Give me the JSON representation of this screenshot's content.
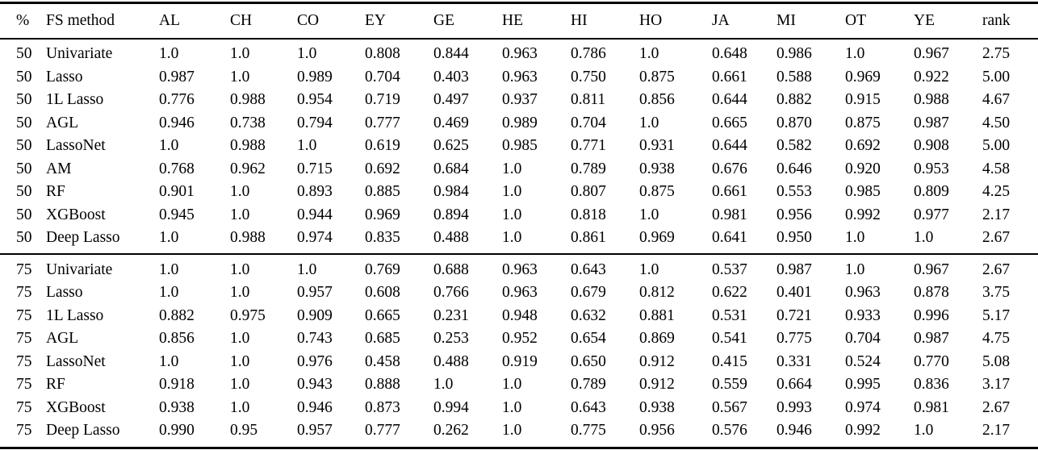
{
  "colors": {
    "text": "#000000",
    "background": "#ffffff",
    "rule": "#000000"
  },
  "table": {
    "columns": [
      "%",
      "FS method",
      "AL",
      "CH",
      "CO",
      "EY",
      "GE",
      "HE",
      "HI",
      "HO",
      "JA",
      "MI",
      "OT",
      "YE",
      "rank"
    ],
    "sections": [
      {
        "pct": "50",
        "rows": [
          {
            "pct": "50",
            "method": "Univariate",
            "values": [
              "1.0",
              "1.0",
              "1.0",
              "0.808",
              "0.844",
              "0.963",
              "0.786",
              "1.0",
              "0.648",
              "0.986",
              "1.0",
              "0.967"
            ],
            "bold": [
              1,
              1,
              1,
              0,
              0,
              0,
              0,
              1,
              0,
              1,
              1,
              0
            ],
            "rank": "2.75"
          },
          {
            "pct": "50",
            "method": "Lasso",
            "values": [
              "0.987",
              "1.0",
              "0.989",
              "0.704",
              "0.403",
              "0.963",
              "0.750",
              "0.875",
              "0.661",
              "0.588",
              "0.969",
              "0.922"
            ],
            "bold": [
              0,
              1,
              0,
              0,
              0,
              0,
              0,
              0,
              0,
              0,
              0,
              0
            ],
            "rank": "5.00"
          },
          {
            "pct": "50",
            "method": "1L Lasso",
            "values": [
              "0.776",
              "0.988",
              "0.954",
              "0.719",
              "0.497",
              "0.937",
              "0.811",
              "0.856",
              "0.644",
              "0.882",
              "0.915",
              "0.988"
            ],
            "bold": [
              0,
              1,
              0,
              0,
              0,
              0,
              0,
              0,
              0,
              0,
              0,
              0
            ],
            "rank": "4.67"
          },
          {
            "pct": "50",
            "method": "AGL",
            "values": [
              "0.946",
              "0.738",
              "0.794",
              "0.777",
              "0.469",
              "0.989",
              "0.704",
              "1.0",
              "0.665",
              "0.870",
              "0.875",
              "0.987"
            ],
            "bold": [
              0,
              0,
              0,
              0,
              0,
              1,
              0,
              1,
              0,
              0,
              0,
              0
            ],
            "rank": "4.50"
          },
          {
            "pct": "50",
            "method": "LassoNet",
            "values": [
              "1.0",
              "0.988",
              "1.0",
              "0.619",
              "0.625",
              "0.985",
              "0.771",
              "0.931",
              "0.644",
              "0.582",
              "0.692",
              "0.908"
            ],
            "bold": [
              1,
              1,
              1,
              0,
              0,
              1,
              0,
              0,
              0,
              0,
              0,
              0
            ],
            "rank": "5.00"
          },
          {
            "pct": "50",
            "method": "AM",
            "values": [
              "0.768",
              "0.962",
              "0.715",
              "0.692",
              "0.684",
              "1.0",
              "0.789",
              "0.938",
              "0.676",
              "0.646",
              "0.920",
              "0.953"
            ],
            "bold": [
              0,
              1,
              0,
              0,
              0,
              1,
              0,
              0,
              0,
              0,
              0,
              0
            ],
            "rank": "4.58"
          },
          {
            "pct": "50",
            "method": "RF",
            "values": [
              "0.901",
              "1.0",
              "0.893",
              "0.885",
              "0.984",
              "1.0",
              "0.807",
              "0.875",
              "0.661",
              "0.553",
              "0.985",
              "0.809"
            ],
            "bold": [
              0,
              1,
              0,
              0,
              1,
              1,
              0,
              0,
              0,
              0,
              0,
              0
            ],
            "rank": "4.25"
          },
          {
            "pct": "50",
            "method": "XGBoost",
            "values": [
              "0.945",
              "1.0",
              "0.944",
              "0.969",
              "0.894",
              "1.0",
              "0.818",
              "1.0",
              "0.981",
              "0.956",
              "0.992",
              "0.977"
            ],
            "bold": [
              0,
              1,
              0,
              1,
              0,
              1,
              0,
              1,
              1,
              0,
              0,
              0
            ],
            "rank": "2.17"
          },
          {
            "pct": "50",
            "method": "Deep Lasso",
            "values": [
              "1.0",
              "0.988",
              "0.974",
              "0.835",
              "0.488",
              "1.0",
              "0.861",
              "0.969",
              "0.641",
              "0.950",
              "1.0",
              "1.0"
            ],
            "bold": [
              1,
              1,
              0,
              0,
              0,
              1,
              1,
              1,
              0,
              0,
              1,
              1
            ],
            "rank": "2.67"
          }
        ]
      },
      {
        "pct": "75",
        "rows": [
          {
            "pct": "75",
            "method": "Univariate",
            "values": [
              "1.0",
              "1.0",
              "1.0",
              "0.769",
              "0.688",
              "0.963",
              "0.643",
              "1.0",
              "0.537",
              "0.987",
              "1.0",
              "0.967"
            ],
            "bold": [
              1,
              1,
              1,
              0,
              0,
              0,
              0,
              1,
              0,
              0,
              1,
              0
            ],
            "rank": "2.67"
          },
          {
            "pct": "75",
            "method": "Lasso",
            "values": [
              "1.0",
              "1.0",
              "0.957",
              "0.608",
              "0.766",
              "0.963",
              "0.679",
              "0.812",
              "0.622",
              "0.401",
              "0.963",
              "0.878"
            ],
            "bold": [
              1,
              1,
              0,
              0,
              0,
              0,
              0,
              0,
              1,
              0,
              0,
              0
            ],
            "rank": "3.75"
          },
          {
            "pct": "75",
            "method": "1L Lasso",
            "values": [
              "0.882",
              "0.975",
              "0.909",
              "0.665",
              "0.231",
              "0.948",
              "0.632",
              "0.881",
              "0.531",
              "0.721",
              "0.933",
              "0.996"
            ],
            "bold": [
              0,
              1,
              0,
              0,
              0,
              0,
              0,
              0,
              0,
              0,
              0,
              1
            ],
            "rank": "5.17"
          },
          {
            "pct": "75",
            "method": "AGL",
            "values": [
              "0.856",
              "1.0",
              "0.743",
              "0.685",
              "0.253",
              "0.952",
              "0.654",
              "0.869",
              "0.541",
              "0.775",
              "0.704",
              "0.987"
            ],
            "bold": [
              0,
              1,
              0,
              0,
              0,
              0,
              0,
              0,
              0,
              0,
              0,
              0
            ],
            "rank": "4.75"
          },
          {
            "pct": "75",
            "method": "LassoNet",
            "values": [
              "1.0",
              "1.0",
              "0.976",
              "0.458",
              "0.488",
              "0.919",
              "0.650",
              "0.912",
              "0.415",
              "0.331",
              "0.524",
              "0.770"
            ],
            "bold": [
              1,
              1,
              0,
              0,
              0,
              0,
              0,
              0,
              0,
              0,
              0,
              0
            ],
            "rank": "5.08"
          },
          {
            "pct": "75",
            "method": "RF",
            "values": [
              "0.918",
              "1.0",
              "0.943",
              "0.888",
              "1.0",
              "1.0",
              "0.789",
              "0.912",
              "0.559",
              "0.664",
              "0.995",
              "0.836"
            ],
            "bold": [
              0,
              1,
              0,
              1,
              1,
              1,
              1,
              0,
              0,
              0,
              0,
              0
            ],
            "rank": "3.17"
          },
          {
            "pct": "75",
            "method": "XGBoost",
            "values": [
              "0.938",
              "1.0",
              "0.946",
              "0.873",
              "0.994",
              "1.0",
              "0.643",
              "0.938",
              "0.567",
              "0.993",
              "0.974",
              "0.981"
            ],
            "bold": [
              0,
              1,
              0,
              1,
              1,
              1,
              0,
              0,
              0,
              1,
              0,
              0
            ],
            "rank": "2.67"
          },
          {
            "pct": "75",
            "method": "Deep Lasso",
            "values": [
              "0.990",
              "0.95",
              "0.957",
              "0.777",
              "0.262",
              "1.0",
              "0.775",
              "0.956",
              "0.576",
              "0.946",
              "0.992",
              "1.0"
            ],
            "bold": [
              0,
              1,
              0,
              0,
              0,
              1,
              1,
              0,
              0,
              0,
              0,
              1
            ],
            "rank": "2.17"
          }
        ]
      }
    ]
  }
}
